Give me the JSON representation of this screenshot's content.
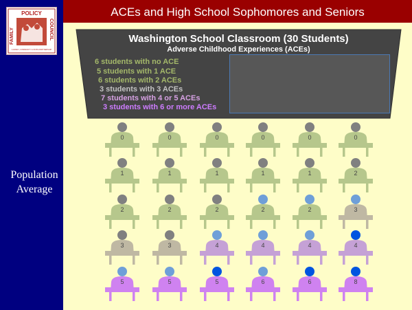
{
  "slide": {
    "title": "ACEs and High School Sophomores and Seniors",
    "side_label_line1": "Population",
    "side_label_line2": "Average"
  },
  "logo": {
    "text_top": "POLICY",
    "text_left": "FAMILY",
    "text_right": "COUNCIL",
    "tagline": "A FAMILY, COMMUNITY & STATE PARTNERSHIP",
    "colors": {
      "frame": "#a52a2a",
      "text": "#b22222"
    }
  },
  "board": {
    "title": "Washington School Classroom (30 Students)",
    "subtitle": "Adverse Childhood Experiences (ACEs)",
    "legend": [
      {
        "text": "6 students with no ACE",
        "color": "#a4b86a"
      },
      {
        "text": "5 students with 1 ACE",
        "color": "#a4b86a"
      },
      {
        "text": "6 students with 2 ACEs",
        "color": "#a4b86a"
      },
      {
        "text": "3 students with 3 ACEs",
        "color": "#c2c2c2"
      },
      {
        "text": "7 students with 4 or 5 ACEs",
        "color": "#d6a1e3"
      },
      {
        "text": "3 students with 6 or more ACEs",
        "color": "#cd7cff"
      }
    ]
  },
  "colors": {
    "sidebar": "#000080",
    "title_bar": "#9a0000",
    "background": "#fefdc8",
    "board": "#444444"
  },
  "classroom": {
    "rows": [
      [
        {
          "aces": "0",
          "body": "#b6c78c",
          "head": "#808080"
        },
        {
          "aces": "0",
          "body": "#b6c78c",
          "head": "#808080"
        },
        {
          "aces": "0",
          "body": "#b6c78c",
          "head": "#808080"
        },
        {
          "aces": "0",
          "body": "#b6c78c",
          "head": "#808080"
        },
        {
          "aces": "0",
          "body": "#b6c78c",
          "head": "#808080"
        },
        {
          "aces": "0",
          "body": "#b6c78c",
          "head": "#808080"
        }
      ],
      [
        {
          "aces": "1",
          "body": "#b6c78c",
          "head": "#808080"
        },
        {
          "aces": "1",
          "body": "#b6c78c",
          "head": "#808080"
        },
        {
          "aces": "1",
          "body": "#b6c78c",
          "head": "#808080"
        },
        {
          "aces": "1",
          "body": "#b6c78c",
          "head": "#808080"
        },
        {
          "aces": "1",
          "body": "#b6c78c",
          "head": "#808080"
        },
        {
          "aces": "2",
          "body": "#b6c78c",
          "head": "#808080"
        }
      ],
      [
        {
          "aces": "2",
          "body": "#b6c78c",
          "head": "#808080"
        },
        {
          "aces": "2",
          "body": "#b6c78c",
          "head": "#808080"
        },
        {
          "aces": "2",
          "body": "#b6c78c",
          "head": "#808080"
        },
        {
          "aces": "2",
          "body": "#b6c78c",
          "head": "#6f9fd8"
        },
        {
          "aces": "2",
          "body": "#b6c78c",
          "head": "#6f9fd8"
        },
        {
          "aces": "3",
          "body": "#bfb8a3",
          "head": "#6f9fd8"
        }
      ],
      [
        {
          "aces": "3",
          "body": "#bfb8a3",
          "head": "#808080"
        },
        {
          "aces": "3",
          "body": "#bfb8a3",
          "head": "#808080"
        },
        {
          "aces": "4",
          "body": "#c5a1d6",
          "head": "#6f9fd8"
        },
        {
          "aces": "4",
          "body": "#c5a1d6",
          "head": "#6f9fd8"
        },
        {
          "aces": "4",
          "body": "#c5a1d6",
          "head": "#6f9fd8"
        },
        {
          "aces": "4",
          "body": "#c5a1d6",
          "head": "#0055e0"
        }
      ],
      [
        {
          "aces": "5",
          "body": "#cf82f0",
          "head": "#6f9fd8"
        },
        {
          "aces": "5",
          "body": "#cf82f0",
          "head": "#6f9fd8"
        },
        {
          "aces": "5",
          "body": "#cf82f0",
          "head": "#0055e0"
        },
        {
          "aces": "6",
          "body": "#cf82f0",
          "head": "#6f9fd8"
        },
        {
          "aces": "6",
          "body": "#cf82f0",
          "head": "#0055e0"
        },
        {
          "aces": "8",
          "body": "#cf82f0",
          "head": "#0055e0"
        }
      ]
    ]
  }
}
